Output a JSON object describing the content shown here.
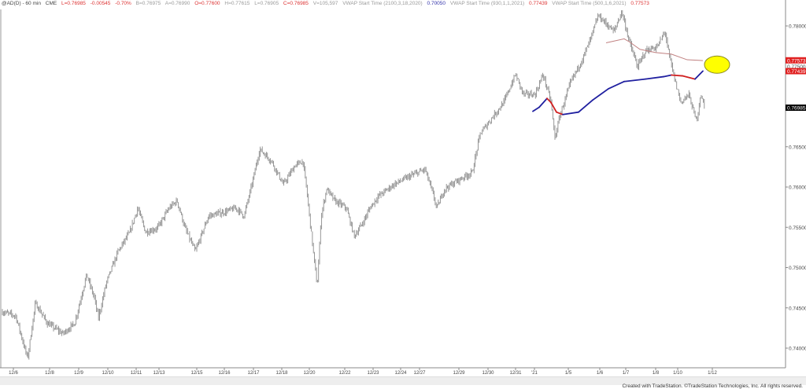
{
  "header": {
    "symbol": "@AD(D) - 60 min",
    "exchange": "CME",
    "last": "L=0.76985",
    "change": "-0.00545",
    "change_pct": "-0.70%",
    "bid": "B=0.76975",
    "ask": "A=0.76990",
    "open": "O=0.77600",
    "high": "H=0.77615",
    "low": "L=0.76905",
    "close": "C=0.76985",
    "volume": "V=105,597",
    "vwap1_label": "VWAP Start Time (2100,3,18,2020)",
    "vwap1_value": "0.70050",
    "vwap2_label": "VWAP Start Time (930,1,1,2021)",
    "vwap2_value": "0.77439",
    "vwap3_label": "VWAP Start Time (500,1,6,2021)",
    "vwap3_value": "0.77573"
  },
  "footer": "Created with TradeStation. ©TradeStation Technologies, Inc. All rights reserved.",
  "chart_data": {
    "type": "bar",
    "ylim": [
      0.7375,
      0.782
    ],
    "y_ticks": [
      "0.78000",
      "0.76500",
      "0.76000",
      "0.75500",
      "0.75000",
      "0.74500",
      "0.74000"
    ],
    "y_tick_values": [
      0.78,
      0.765,
      0.76,
      0.755,
      0.75,
      0.745,
      0.74
    ],
    "price_labels": [
      {
        "text": "0.77573",
        "value": 0.77573,
        "color": "#e02020"
      },
      {
        "text": "0.77500",
        "value": 0.775,
        "color": "#ffffff"
      },
      {
        "text": "0.77439",
        "value": 0.77439,
        "color": "#e02020"
      },
      {
        "text": "0.76985",
        "value": 0.76985,
        "color": "#000000"
      }
    ],
    "x_ticks": [
      {
        "label": "12/6",
        "bar": 17
      },
      {
        "label": "12/8",
        "bar": 63
      },
      {
        "label": "12/9",
        "bar": 100
      },
      {
        "label": "12/10",
        "bar": 137
      },
      {
        "label": "12/11",
        "bar": 173
      },
      {
        "label": "12/13",
        "bar": 202
      },
      {
        "label": "12/15",
        "bar": 250
      },
      {
        "label": "12/16",
        "bar": 285
      },
      {
        "label": "12/17",
        "bar": 322
      },
      {
        "label": "12/18",
        "bar": 358
      },
      {
        "label": "12/20",
        "bar": 393
      },
      {
        "label": "12/22",
        "bar": 438
      },
      {
        "label": "12/23",
        "bar": 474
      },
      {
        "label": "12/24",
        "bar": 509
      },
      {
        "label": "12/27",
        "bar": 533
      },
      {
        "label": "12/29",
        "bar": 583
      },
      {
        "label": "12/30",
        "bar": 620
      },
      {
        "label": "12/31",
        "bar": 655
      },
      {
        "label": "'21",
        "bar": 679
      },
      {
        "label": "1/5",
        "bar": 722
      },
      {
        "label": "1/6",
        "bar": 762
      },
      {
        "label": "1/7",
        "bar": 795
      },
      {
        "label": "1/8",
        "bar": 833
      },
      {
        "label": "1/10",
        "bar": 861
      },
      {
        "label": "1/12",
        "bar": 905
      }
    ],
    "price_path": [
      [
        3,
        0.7445
      ],
      [
        20,
        0.744
      ],
      [
        35,
        0.7387
      ],
      [
        45,
        0.7456
      ],
      [
        60,
        0.7431
      ],
      [
        80,
        0.7418
      ],
      [
        95,
        0.7431
      ],
      [
        110,
        0.7491
      ],
      [
        120,
        0.7462
      ],
      [
        125,
        0.7437
      ],
      [
        135,
        0.7481
      ],
      [
        150,
        0.752
      ],
      [
        165,
        0.7544
      ],
      [
        175,
        0.7574
      ],
      [
        185,
        0.7544
      ],
      [
        200,
        0.7549
      ],
      [
        215,
        0.7574
      ],
      [
        225,
        0.7583
      ],
      [
        235,
        0.7549
      ],
      [
        248,
        0.752
      ],
      [
        265,
        0.7564
      ],
      [
        285,
        0.7569
      ],
      [
        300,
        0.7574
      ],
      [
        310,
        0.7564
      ],
      [
        320,
        0.7603
      ],
      [
        330,
        0.7647
      ],
      [
        345,
        0.7632
      ],
      [
        360,
        0.7603
      ],
      [
        375,
        0.7627
      ],
      [
        385,
        0.7632
      ],
      [
        390,
        0.7593
      ],
      [
        398,
        0.752
      ],
      [
        403,
        0.7476
      ],
      [
        408,
        0.7564
      ],
      [
        415,
        0.7598
      ],
      [
        425,
        0.7583
      ],
      [
        440,
        0.7574
      ],
      [
        450,
        0.7539
      ],
      [
        460,
        0.7554
      ],
      [
        470,
        0.7574
      ],
      [
        480,
        0.7588
      ],
      [
        500,
        0.7603
      ],
      [
        520,
        0.7613
      ],
      [
        540,
        0.7622
      ],
      [
        548,
        0.7598
      ],
      [
        555,
        0.7574
      ],
      [
        565,
        0.7598
      ],
      [
        590,
        0.7613
      ],
      [
        600,
        0.7618
      ],
      [
        610,
        0.7666
      ],
      [
        625,
        0.7686
      ],
      [
        640,
        0.7705
      ],
      [
        655,
        0.774
      ],
      [
        665,
        0.7715
      ],
      [
        680,
        0.7715
      ],
      [
        690,
        0.774
      ],
      [
        700,
        0.7705
      ],
      [
        705,
        0.7661
      ],
      [
        712,
        0.7691
      ],
      [
        725,
        0.773
      ],
      [
        740,
        0.7759
      ],
      [
        750,
        0.7783
      ],
      [
        760,
        0.7813
      ],
      [
        770,
        0.7803
      ],
      [
        780,
        0.7793
      ],
      [
        790,
        0.7818
      ],
      [
        800,
        0.7779
      ],
      [
        810,
        0.7749
      ],
      [
        820,
        0.7769
      ],
      [
        835,
        0.7774
      ],
      [
        845,
        0.7793
      ],
      [
        850,
        0.7764
      ],
      [
        858,
        0.773
      ],
      [
        865,
        0.7705
      ],
      [
        875,
        0.7715
      ],
      [
        885,
        0.7681
      ],
      [
        890,
        0.7715
      ],
      [
        895,
        0.77
      ]
    ],
    "vwap_2021_01_01": {
      "color_up": "#2020a0",
      "color_down": "#d02020",
      "points": [
        [
          677,
          0.7694
        ],
        [
          685,
          0.7699
        ],
        [
          695,
          0.771
        ],
        [
          700,
          0.7705
        ],
        [
          707,
          0.7693
        ],
        [
          715,
          0.769
        ],
        [
          735,
          0.7693
        ],
        [
          753,
          0.7708
        ],
        [
          773,
          0.7722
        ],
        [
          793,
          0.7731
        ],
        [
          820,
          0.7734
        ],
        [
          843,
          0.7737
        ],
        [
          853,
          0.7739
        ],
        [
          867,
          0.7738
        ],
        [
          883,
          0.7734
        ],
        [
          893,
          0.7744
        ]
      ]
    },
    "vwap_2021_01_06": {
      "color": "#c08080",
      "points": [
        [
          770,
          0.7779
        ],
        [
          793,
          0.7784
        ],
        [
          800,
          0.778
        ],
        [
          813,
          0.7771
        ],
        [
          833,
          0.7767
        ],
        [
          853,
          0.7765
        ],
        [
          873,
          0.7758
        ],
        [
          893,
          0.7757
        ]
      ]
    },
    "annotation": {
      "shape": "ellipse",
      "color": "#ffff00",
      "bar": 911,
      "value": 0.7752
    }
  }
}
